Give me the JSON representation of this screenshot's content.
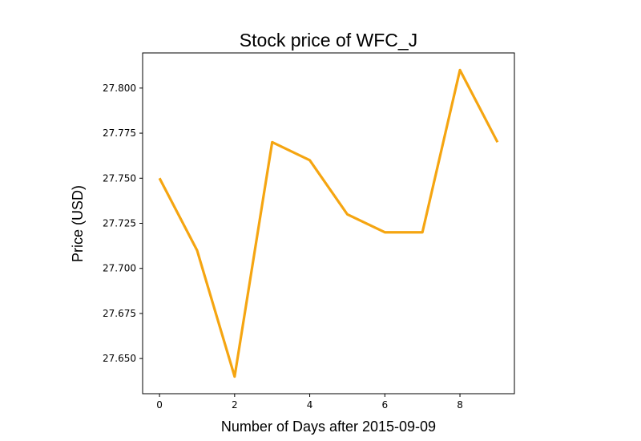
{
  "chart_data": {
    "type": "line",
    "title": "Stock price of WFC_J",
    "xlabel": "Number of Days after 2015-09-09",
    "ylabel": "Price (USD)",
    "x": [
      0,
      1,
      2,
      3,
      4,
      5,
      6,
      7,
      8,
      9
    ],
    "series": [
      {
        "values": [
          27.75,
          27.71,
          27.64,
          27.77,
          27.76,
          27.73,
          27.72,
          27.72,
          27.81,
          27.77
        ],
        "color": "#f5a511"
      }
    ],
    "xlim": [
      -0.45,
      9.45
    ],
    "ylim": [
      27.6305,
      27.8195
    ],
    "xticks": [
      0,
      2,
      4,
      6,
      8
    ],
    "yticks": [
      27.65,
      27.675,
      27.7,
      27.725,
      27.75,
      27.775,
      27.8
    ],
    "xtick_labels": [
      "0",
      "2",
      "4",
      "6",
      "8"
    ],
    "ytick_labels": [
      "27.650",
      "27.675",
      "27.700",
      "27.725",
      "27.750",
      "27.775",
      "27.800"
    ],
    "grid": false,
    "legend": "none"
  }
}
